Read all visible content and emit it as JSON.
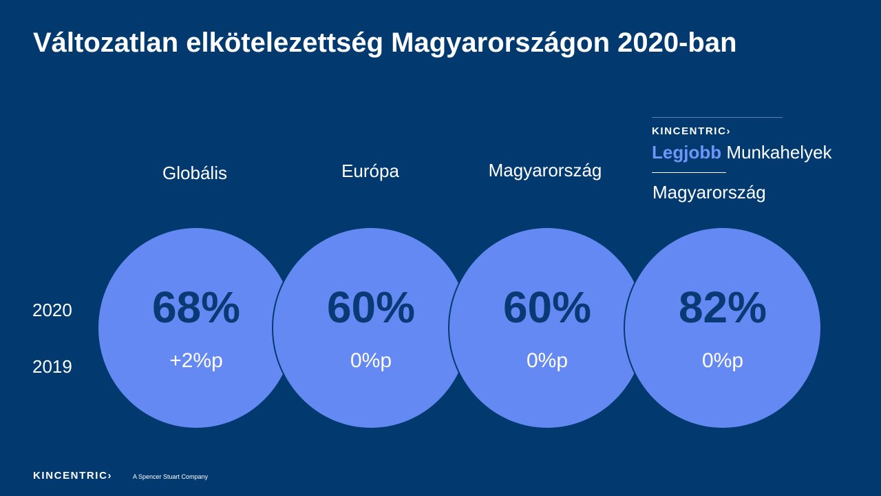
{
  "title": "Változatlan elkötelezettség Magyarországon 2020-ban",
  "row_labels": {
    "current": "2020",
    "previous": "2019"
  },
  "columns": [
    {
      "label": "Globális",
      "pct": "68%",
      "delta": "+2%p"
    },
    {
      "label": "Európa",
      "pct": "60%",
      "delta": "0%p"
    },
    {
      "label": "Magyarország",
      "pct": "60%",
      "delta": "0%p"
    },
    {
      "label": "Magyarország",
      "pct": "82%",
      "delta": "0%p"
    }
  ],
  "best_workplaces": {
    "brand": "KINCENTRIC›",
    "legjobb": "Legjobb",
    "munkahelyek": "Munkahelyek"
  },
  "footer": {
    "brand": "KINCENTRIC›",
    "tagline": "A Spencer Stuart Company"
  },
  "colors": {
    "background": "#023a70",
    "circle": "#6589f2",
    "percent_text": "#0a3a75",
    "accent": "#6f95f6"
  }
}
